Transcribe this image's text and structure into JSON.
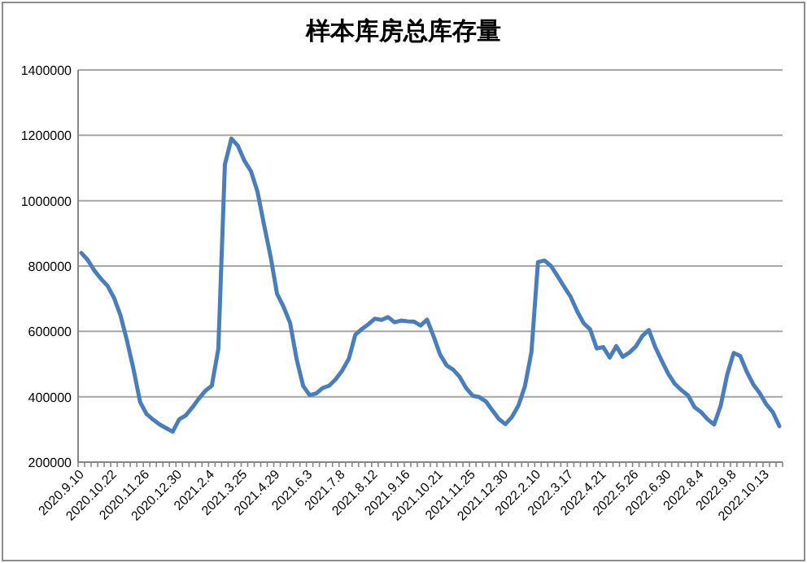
{
  "chart_data": {
    "type": "line",
    "title": "样本库房总库存量",
    "categories": [
      "2020.9.10",
      null,
      null,
      null,
      null,
      "2020.10.22",
      null,
      null,
      null,
      null,
      "2020.11.26",
      null,
      null,
      null,
      null,
      "2020.12.30",
      null,
      null,
      null,
      null,
      "2021.2.4",
      null,
      null,
      null,
      null,
      "2021.3.25",
      null,
      null,
      null,
      null,
      "2021.4.29",
      null,
      null,
      null,
      null,
      "2021.6.3",
      null,
      null,
      null,
      null,
      "2021.7.8",
      null,
      null,
      null,
      null,
      "2021.8.12",
      null,
      null,
      null,
      null,
      "2021.9.16",
      null,
      null,
      null,
      null,
      "2021.10.21",
      null,
      null,
      null,
      null,
      "2021.11.25",
      null,
      null,
      null,
      null,
      "2021.12.30",
      null,
      null,
      null,
      null,
      "2022.2.10",
      null,
      null,
      null,
      null,
      "2022.3.17",
      null,
      null,
      null,
      null,
      "2022.4.21",
      null,
      null,
      null,
      null,
      "2022.5.26",
      null,
      null,
      null,
      null,
      "2022.6.30",
      null,
      null,
      null,
      null,
      "2022.8.4",
      null,
      null,
      null,
      null,
      "2022.9.8",
      null,
      null,
      null,
      null,
      "2022.10.13",
      null,
      null
    ],
    "values": [
      840000,
      818000,
      786000,
      761000,
      740000,
      703000,
      649000,
      571000,
      484000,
      384000,
      347000,
      330000,
      315000,
      304000,
      293000,
      331000,
      343000,
      367000,
      394000,
      418000,
      434000,
      547000,
      1110000,
      1190000,
      1168000,
      1122000,
      1090000,
      1028000,
      927000,
      830000,
      715000,
      675000,
      626000,
      515000,
      433000,
      405000,
      410000,
      427000,
      434000,
      454000,
      481000,
      516000,
      590000,
      607000,
      622000,
      639000,
      635000,
      644000,
      628000,
      633000,
      631000,
      630000,
      618000,
      636000,
      585000,
      529000,
      496000,
      483000,
      461000,
      426000,
      403000,
      399000,
      386000,
      359000,
      332000,
      316000,
      338000,
      373000,
      432000,
      537000,
      812000,
      817000,
      800000,
      769000,
      737000,
      706000,
      662000,
      625000,
      606000,
      548000,
      552000,
      520000,
      555000,
      522000,
      535000,
      554000,
      586000,
      604000,
      551000,
      509000,
      469000,
      439000,
      420000,
      404000,
      368000,
      353000,
      331000,
      315000,
      372000,
      467000,
      534000,
      525000,
      477000,
      438000,
      411000,
      377000,
      353000,
      310000
    ],
    "color": "#4a7ebb",
    "ylim": [
      200000,
      1400000
    ],
    "yticks": [
      200000,
      400000,
      600000,
      800000,
      1000000,
      1200000,
      1400000
    ],
    "grid": "y"
  }
}
